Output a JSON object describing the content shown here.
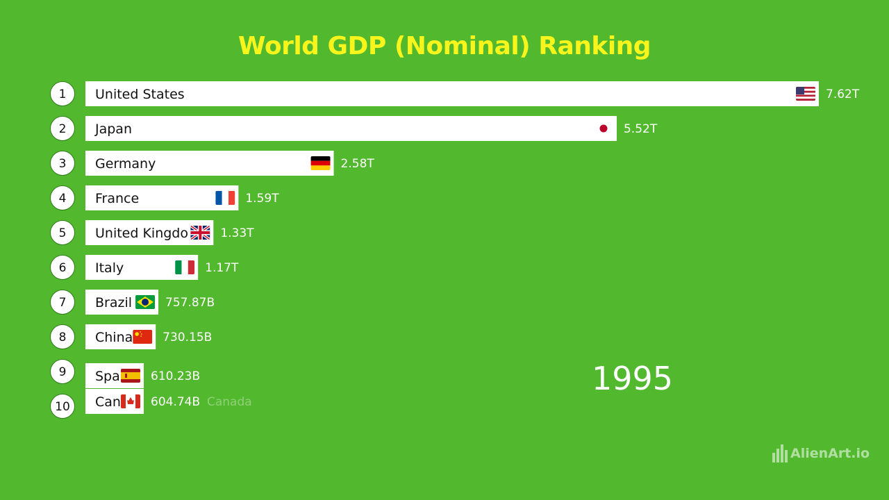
{
  "title": "World GDP (Nominal) Ranking",
  "year": "1995",
  "brand": "AlienArt.io",
  "colors": {
    "background": "#52b82e",
    "title": "#f7f51c",
    "bar": "#ffffff"
  },
  "chart_data": {
    "type": "bar",
    "orientation": "horizontal",
    "title": "World GDP (Nominal) Ranking",
    "year": "1995",
    "xlim": [
      0,
      7.62
    ],
    "grid": false,
    "legend": "none",
    "bars": [
      {
        "rank": "1",
        "label": "United States",
        "value": 7.62,
        "value_label": "7.62T",
        "flag": "us-flag-icon"
      },
      {
        "rank": "2",
        "label": "Japan",
        "value": 5.52,
        "value_label": "5.52T",
        "flag": "japan-flag-icon"
      },
      {
        "rank": "3",
        "label": "Germany",
        "value": 2.58,
        "value_label": "2.58T",
        "flag": "germany-flag-icon"
      },
      {
        "rank": "4",
        "label": "France",
        "value": 1.59,
        "value_label": "1.59T",
        "flag": "france-flag-icon"
      },
      {
        "rank": "5",
        "label": "United Kingdo",
        "value": 1.33,
        "value_label": "1.33T",
        "flag": "uk-flag-icon"
      },
      {
        "rank": "6",
        "label": "Italy",
        "value": 1.17,
        "value_label": "1.17T",
        "flag": "italy-flag-icon"
      },
      {
        "rank": "7",
        "label": "Brazil",
        "value": 0.75787,
        "value_label": "757.87B",
        "flag": "brazil-flag-icon"
      },
      {
        "rank": "8",
        "label": "China",
        "value": 0.73015,
        "value_label": "730.15B",
        "flag": "china-flag-icon"
      },
      {
        "rank": "9",
        "label": "Spa",
        "value": 0.61023,
        "value_label": "610.23B",
        "flag": "spain-flag-icon"
      },
      {
        "rank": "10",
        "label": "Can",
        "value": 0.60474,
        "value_label": "604.74B",
        "flag": "canada-flag-icon",
        "ghost_label": "Canada"
      }
    ]
  }
}
